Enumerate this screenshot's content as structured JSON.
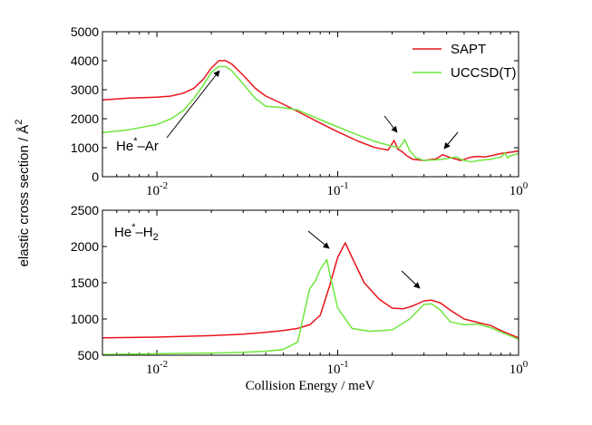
{
  "chart_data": [
    {
      "type": "line",
      "panel": "top",
      "xscale": "log",
      "xlim": [
        0.005,
        1
      ],
      "ylim": [
        0,
        5000
      ],
      "y_ticks": [
        0,
        1000,
        2000,
        3000,
        4000,
        5000
      ],
      "x_ticks": [
        {
          "value": 0.01,
          "base": "10",
          "exp": "-2"
        },
        {
          "value": 0.1,
          "base": "10",
          "exp": "-1"
        },
        {
          "value": 1,
          "base": "10",
          "exp": "0"
        }
      ],
      "system_label": {
        "base": "He",
        "sup": "*",
        "rest": "–Ar"
      },
      "legend_position": "top-right",
      "series": [
        {
          "name": "SAPT",
          "color": "#e8141c",
          "x": [
            0.005,
            0.007,
            0.01,
            0.012,
            0.014,
            0.016,
            0.018,
            0.02,
            0.022,
            0.024,
            0.026,
            0.03,
            0.035,
            0.04,
            0.05,
            0.06,
            0.08,
            0.1,
            0.13,
            0.16,
            0.19,
            0.205,
            0.215,
            0.225,
            0.24,
            0.26,
            0.3,
            0.35,
            0.38,
            0.42,
            0.48,
            0.55,
            0.6,
            0.65,
            0.7,
            0.8,
            1
          ],
          "values": [
            2650,
            2710,
            2740,
            2780,
            2880,
            3050,
            3350,
            3750,
            4000,
            4000,
            3880,
            3500,
            3050,
            2780,
            2500,
            2250,
            1850,
            1550,
            1220,
            1010,
            920,
            1250,
            950,
            880,
            730,
            600,
            560,
            620,
            760,
            660,
            560,
            680,
            700,
            680,
            720,
            800,
            880
          ]
        },
        {
          "name": "UCCSD(T)",
          "color": "#6ee63c",
          "x": [
            0.005,
            0.007,
            0.01,
            0.012,
            0.014,
            0.016,
            0.018,
            0.02,
            0.022,
            0.024,
            0.026,
            0.03,
            0.035,
            0.04,
            0.05,
            0.06,
            0.08,
            0.1,
            0.13,
            0.16,
            0.2,
            0.22,
            0.235,
            0.25,
            0.27,
            0.3,
            0.35,
            0.4,
            0.45,
            0.5,
            0.55,
            0.6,
            0.7,
            0.8,
            0.84,
            0.87,
            0.9,
            1
          ],
          "values": [
            1520,
            1620,
            1800,
            2000,
            2280,
            2700,
            3150,
            3600,
            3800,
            3800,
            3650,
            3200,
            2700,
            2430,
            2380,
            2300,
            1970,
            1720,
            1430,
            1220,
            1050,
            1000,
            1280,
            900,
            660,
            560,
            580,
            620,
            680,
            560,
            510,
            560,
            600,
            680,
            820,
            650,
            720,
            800
          ]
        }
      ],
      "annotations": [
        {
          "text": "",
          "target": "He*-Ar main peak"
        },
        {
          "text": "",
          "target": "SAPT resonance near 0.2 meV"
        },
        {
          "text": "",
          "target": "resonance near 0.4 meV"
        }
      ]
    },
    {
      "type": "line",
      "panel": "bottom",
      "xscale": "log",
      "xlim": [
        0.005,
        1
      ],
      "ylim": [
        500,
        2500
      ],
      "y_ticks": [
        500,
        1000,
        1500,
        2000,
        2500
      ],
      "x_ticks": [
        {
          "value": 0.01,
          "base": "10",
          "exp": "-2"
        },
        {
          "value": 0.1,
          "base": "10",
          "exp": "-1"
        },
        {
          "value": 1,
          "base": "10",
          "exp": "0"
        }
      ],
      "system_label": {
        "base": "He",
        "sup": "*",
        "rest": "–H",
        "sub": "2"
      },
      "series": [
        {
          "name": "SAPT",
          "color": "#e8141c",
          "x": [
            0.005,
            0.01,
            0.02,
            0.03,
            0.04,
            0.05,
            0.06,
            0.07,
            0.08,
            0.09,
            0.1,
            0.11,
            0.12,
            0.14,
            0.17,
            0.2,
            0.23,
            0.26,
            0.3,
            0.33,
            0.37,
            0.42,
            0.5,
            0.6,
            0.7,
            0.8,
            1
          ],
          "values": [
            740,
            750,
            770,
            790,
            815,
            840,
            870,
            920,
            1050,
            1450,
            1850,
            2050,
            1850,
            1500,
            1270,
            1150,
            1140,
            1180,
            1250,
            1260,
            1220,
            1120,
            1000,
            950,
            910,
            840,
            740
          ]
        },
        {
          "name": "UCCSD(T)",
          "color": "#6ee63c",
          "x": [
            0.005,
            0.01,
            0.02,
            0.03,
            0.04,
            0.05,
            0.06,
            0.07,
            0.075,
            0.08,
            0.087,
            0.09,
            0.1,
            0.12,
            0.15,
            0.2,
            0.25,
            0.3,
            0.33,
            0.37,
            0.42,
            0.5,
            0.6,
            0.7,
            0.8,
            1
          ],
          "values": [
            510,
            520,
            530,
            540,
            555,
            580,
            680,
            1420,
            1520,
            1680,
            1820,
            1640,
            1150,
            870,
            830,
            850,
            1000,
            1200,
            1210,
            1120,
            960,
            920,
            930,
            880,
            820,
            720
          ]
        }
      ],
      "annotations": [
        {
          "text": "",
          "target": "UCCSD(T) peak near 0.09 meV"
        },
        {
          "text": "",
          "target": "peak near 0.3 meV"
        }
      ]
    }
  ],
  "ylabel": "elastic cross section / Å",
  "ylabel_sup": "2",
  "xlabel": "Collision Energy / meV",
  "colors": {
    "sapt": "#e8141c",
    "uccsdt": "#6ee63c",
    "axis": "#000000"
  }
}
